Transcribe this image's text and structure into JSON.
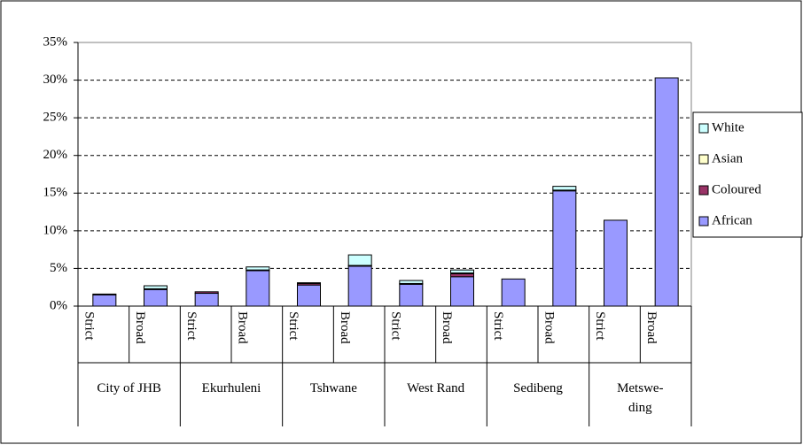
{
  "chart_data": {
    "type": "stacked_bar",
    "categories": [
      "Strict",
      "Broad",
      "Strict",
      "Broad",
      "Strict",
      "Broad",
      "Strict",
      "Broad",
      "Strict",
      "Broad",
      "Strict",
      "Broad"
    ],
    "groups": [
      "City of JHB",
      "Ekurhuleni",
      "Tshwane",
      "West Rand",
      "Sedibeng",
      "Metswe-\nding"
    ],
    "series": [
      {
        "name": "African",
        "color": "#9999ff",
        "values": [
          1.5,
          2.2,
          1.7,
          4.7,
          2.8,
          5.3,
          2.9,
          3.9,
          3.6,
          15.3,
          11.4,
          30.3
        ]
      },
      {
        "name": "Coloured",
        "color": "#993366",
        "values": [
          0,
          0,
          0.2,
          0,
          0.2,
          0,
          0,
          0.4,
          0,
          0,
          0,
          0
        ]
      },
      {
        "name": "Asian",
        "color": "#ffffcc",
        "values": [
          0,
          0.1,
          0,
          0.1,
          0,
          0.1,
          0.1,
          0.1,
          0,
          0.1,
          0,
          0
        ]
      },
      {
        "name": "White",
        "color": "#ccffff",
        "values": [
          0.1,
          0.4,
          0,
          0.4,
          0.1,
          1.4,
          0.4,
          0.4,
          0,
          0.5,
          0,
          0
        ]
      }
    ],
    "ylim": [
      0,
      35
    ],
    "yticks": [
      {
        "value": 0,
        "label": "0%"
      },
      {
        "value": 5,
        "label": "5%"
      },
      {
        "value": 10,
        "label": "10%"
      },
      {
        "value": 15,
        "label": "15%"
      },
      {
        "value": 20,
        "label": "20%"
      },
      {
        "value": 25,
        "label": "25%"
      },
      {
        "value": 30,
        "label": "30%"
      },
      {
        "value": 35,
        "label": "35%"
      }
    ],
    "grid": true,
    "legend": "right"
  }
}
